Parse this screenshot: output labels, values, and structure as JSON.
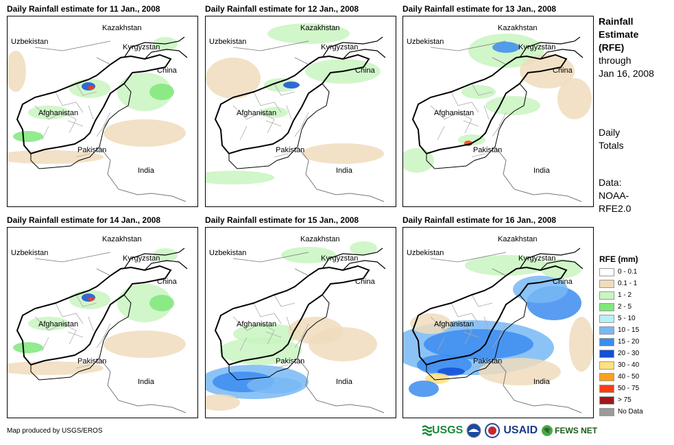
{
  "panels": [
    {
      "title": "Daily Rainfall estimate for 11 Jan., 2008",
      "day": "11"
    },
    {
      "title": "Daily Rainfall estimate for 12 Jan., 2008",
      "day": "12"
    },
    {
      "title": "Daily Rainfall estimate for 13 Jan., 2008",
      "day": "13"
    },
    {
      "title": "Daily Rainfall estimate for 14 Jan., 2008",
      "day": "14"
    },
    {
      "title": "Daily Rainfall estimate for 15 Jan., 2008",
      "day": "15"
    },
    {
      "title": "Daily Rainfall estimate for 16 Jan., 2008",
      "day": "16"
    }
  ],
  "place_labels": {
    "kazakhstan": "Kazakhstan",
    "uzbekistan": "Uzbekistan",
    "kyrgyzstan": "Kyrgyzstan",
    "china": "China",
    "afghanistan": "Afghanistan",
    "pakistan": "Pakistan",
    "india": "India"
  },
  "sidebar": {
    "title_line1": "Rainfall",
    "title_line2": "Estimate",
    "title_line3": "(RFE)",
    "through": "through",
    "date": "Jan 16, 2008",
    "daily1": "Daily",
    "daily2": "Totals",
    "data1": "Data:",
    "data2": "NOAA-",
    "data3": "RFE2.0"
  },
  "legend": {
    "title": "RFE (mm)",
    "items": [
      {
        "label": "0 - 0.1",
        "color": "#ffffff"
      },
      {
        "label": "0.1 - 1",
        "color": "#f0dcbc"
      },
      {
        "label": "1 - 2",
        "color": "#c8f5c0"
      },
      {
        "label": "2 - 5",
        "color": "#7fe87a"
      },
      {
        "label": "5 - 10",
        "color": "#b8f0f5"
      },
      {
        "label": "10 - 15",
        "color": "#78b8f5"
      },
      {
        "label": "15 - 20",
        "color": "#3c8cf0"
      },
      {
        "label": "20 - 30",
        "color": "#1450d8"
      },
      {
        "label": "30 - 40",
        "color": "#ffe080"
      },
      {
        "label": "40 - 50",
        "color": "#ffa020"
      },
      {
        "label": "50 - 75",
        "color": "#ff3c10"
      },
      {
        "label": "> 75",
        "color": "#a01818"
      },
      {
        "label": "No Data",
        "color": "#9a9a9a"
      }
    ]
  },
  "credit": "Map produced by USGS/EROS",
  "logos": {
    "usgs": "USGS",
    "usaid": "USAID",
    "fewsnet": "FEWS NET"
  }
}
